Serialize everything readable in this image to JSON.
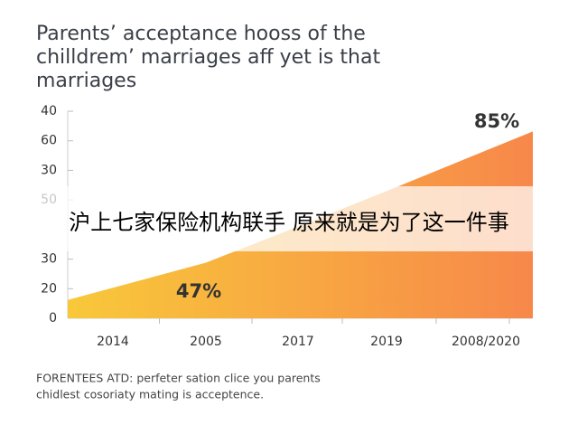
{
  "chart_data": {
    "type": "area",
    "title_lines": [
      "Parents’ acceptance hooss of the",
      "chilldrem’ marriages aff yet is that",
      "marriages"
    ],
    "categories": [
      "2014",
      "2005",
      "2017",
      "2019",
      "2008/2020"
    ],
    "values": [
      10.3,
      18.8,
      31,
      43,
      56.7
    ],
    "colors": [
      "#f8c83a",
      "#f7884a"
    ],
    "ylim": [
      0,
      70
    ],
    "yticks": [
      0,
      {
        "value": 10,
        "label": "20"
      },
      {
        "value": 20,
        "label": "30"
      },
      {
        "value": 40,
        "label": "50"
      },
      {
        "value": 50,
        "label": "30"
      },
      {
        "value": 60,
        "label": "60"
      },
      {
        "value": 70,
        "label": "40"
      }
    ],
    "annotations": [
      "47%",
      "85%"
    ],
    "footnote_lines": [
      "FORENTEES ATD: perfeter sation clice you parents",
      "chidlest cosoriaty mating is acceptence."
    ]
  },
  "overlay": {
    "text": "沪上七家保险机构联手 原来就是为了这一件事"
  }
}
